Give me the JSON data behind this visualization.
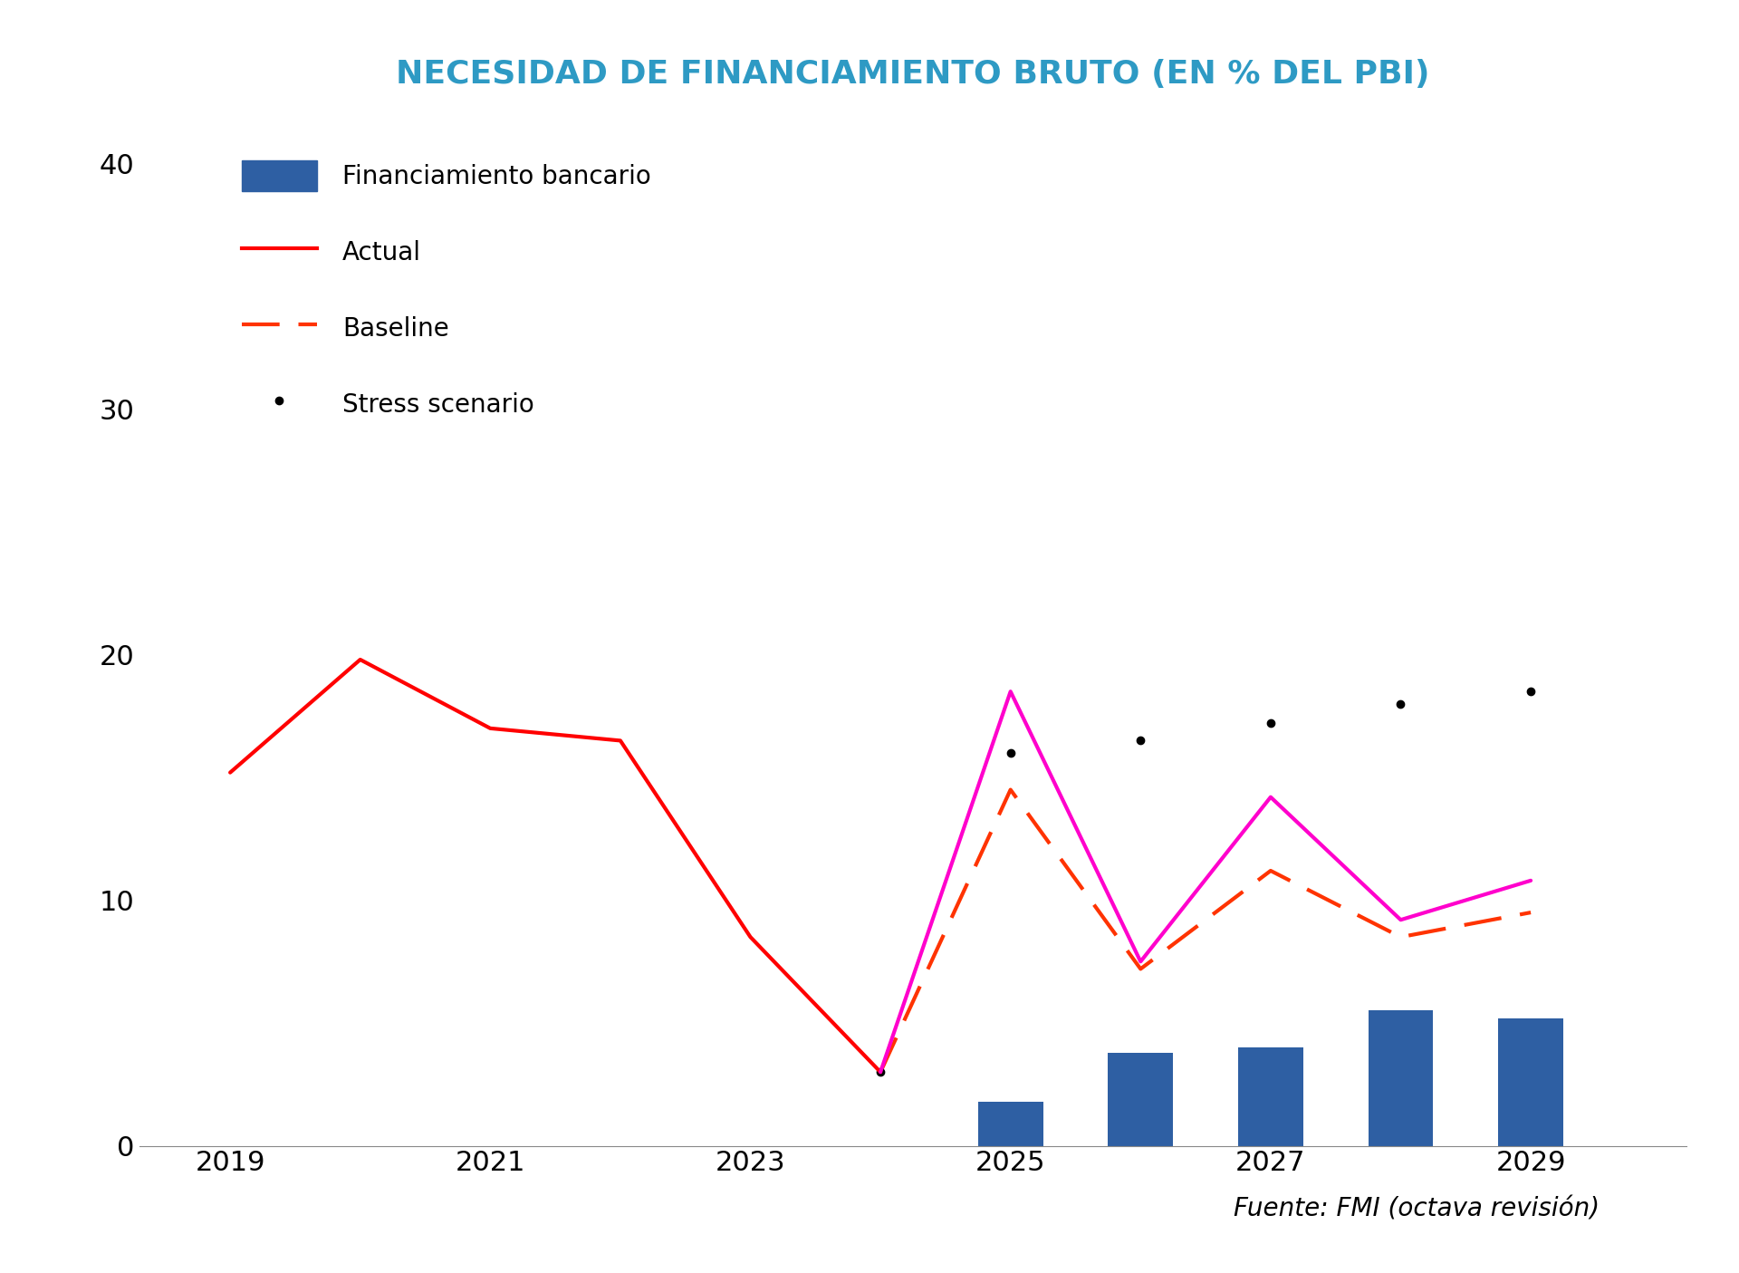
{
  "title": "NECESIDAD DE FINANCIAMIENTO BRUTO (EN % DEL PBI)",
  "title_color": "#2e9ac4",
  "title_fontsize": 26,
  "background_color": "#ffffff",
  "ylim": [
    0,
    42
  ],
  "yticks": [
    0,
    10,
    20,
    30,
    40
  ],
  "xlim": [
    2018.3,
    2030.2
  ],
  "xticks": [
    2019,
    2021,
    2023,
    2025,
    2027,
    2029
  ],
  "actual_x": [
    2019,
    2020,
    2021,
    2022,
    2023,
    2024
  ],
  "actual_y": [
    15.2,
    19.8,
    17.0,
    16.5,
    8.5,
    3.0
  ],
  "actual_color": "#ff0000",
  "actual_linewidth": 3.0,
  "magenta_x": [
    2024,
    2025,
    2026,
    2027,
    2028,
    2029
  ],
  "magenta_y": [
    3.0,
    18.5,
    7.5,
    14.2,
    9.2,
    10.8
  ],
  "magenta_color": "#ff00cc",
  "magenta_linewidth": 3.0,
  "baseline_x": [
    2024,
    2025,
    2026,
    2027,
    2028,
    2029
  ],
  "baseline_y": [
    3.0,
    14.5,
    7.2,
    11.2,
    8.5,
    9.5
  ],
  "baseline_color": "#ff3300",
  "baseline_linewidth": 3.0,
  "baseline_dash": [
    10,
    5
  ],
  "stress_x": [
    2024,
    2025,
    2026,
    2027,
    2028,
    2029
  ],
  "stress_y": [
    3.0,
    16.0,
    16.5,
    17.2,
    18.0,
    18.5
  ],
  "stress_color": "#000000",
  "stress_linewidth": 2.5,
  "stress_dotsize": 6,
  "bar_x": [
    2025,
    2026,
    2027,
    2028,
    2029
  ],
  "bar_y": [
    1.8,
    3.8,
    4.0,
    5.5,
    5.2
  ],
  "bar_color": "#2e5fa3",
  "bar_width": 0.5,
  "legend_bar_label": "Financiamiento bancario",
  "legend_actual_label": "Actual",
  "legend_baseline_label": "Baseline",
  "legend_stress_label": "Stress scenario",
  "legend_fontsize": 20,
  "legend_handlelength": 3.0,
  "source_text": "Fuente: FMI (octava revisión)",
  "source_fontsize": 20,
  "tick_fontsize": 22
}
